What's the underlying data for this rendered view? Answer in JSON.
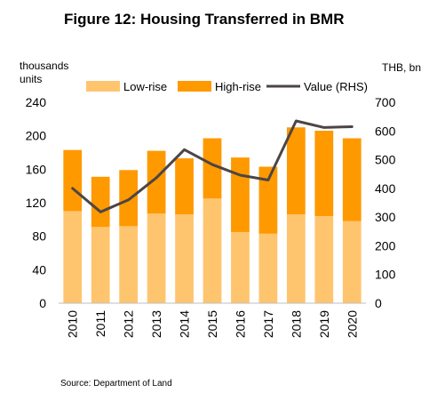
{
  "chart_data": {
    "type": "bar",
    "stacked": true,
    "title": "Figure 12: Housing Transferred in BMR",
    "ylabel_left": [
      "thousands",
      "units"
    ],
    "ylabel_right": "THB, bn",
    "categories": [
      "2010",
      "2011",
      "2012",
      "2013",
      "2014",
      "2015",
      "2016",
      "2017",
      "2018",
      "2019",
      "2020"
    ],
    "series": [
      {
        "name": "Low-rise",
        "kind": "bar",
        "axis": "left",
        "color": "#FFC56E",
        "values": [
          110,
          91,
          92,
          107,
          106,
          125,
          85,
          83,
          106,
          104,
          98
        ]
      },
      {
        "name": "High-rise",
        "kind": "bar",
        "axis": "left",
        "color": "#FF9900",
        "values": [
          73,
          60,
          67,
          75,
          67,
          72,
          89,
          80,
          104,
          102,
          99
        ]
      },
      {
        "name": "Value (RHS)",
        "kind": "line",
        "axis": "right",
        "color": "#4D4545",
        "values": [
          400,
          318,
          360,
          437,
          535,
          483,
          446,
          429,
          635,
          612,
          615
        ]
      }
    ],
    "ylim_left": [
      0,
      240
    ],
    "yticks_left": [
      "0",
      "40",
      "80",
      "120",
      "160",
      "200",
      "240"
    ],
    "ylim_right": [
      0,
      700
    ],
    "yticks_right": [
      "0",
      "100",
      "200",
      "300",
      "400",
      "500",
      "600",
      "700"
    ],
    "grid": false,
    "legend_position": "top"
  },
  "source": "Source: Department of Land"
}
